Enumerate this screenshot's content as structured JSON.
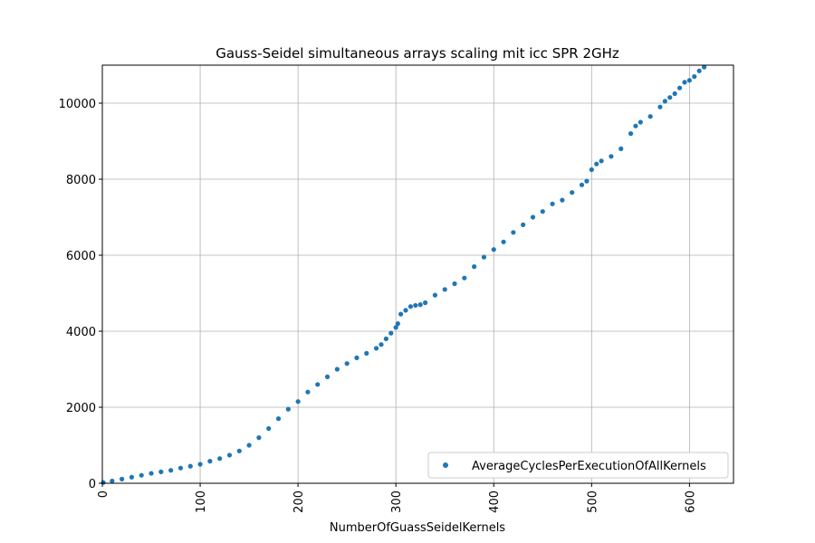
{
  "chart_data": {
    "type": "scatter",
    "title": "Gauss-Seidel simultaneous arrays scaling mit icc SPR 2GHz",
    "xlabel": "NumberOfGuassSeidelKernels",
    "ylabel": "",
    "xlim": [
      0,
      645
    ],
    "ylim": [
      0,
      11000
    ],
    "x_ticks": [
      0,
      100,
      200,
      300,
      400,
      500,
      600
    ],
    "y_ticks": [
      0,
      2000,
      4000,
      6000,
      8000,
      10000
    ],
    "x_tick_labels": [
      "0",
      "100",
      "200",
      "300",
      "400",
      "500",
      "600"
    ],
    "y_tick_labels": [
      "0",
      "2000",
      "4000",
      "6000",
      "8000",
      "10000"
    ],
    "grid": true,
    "legend_position": "lower-right",
    "series": [
      {
        "name": "AverageCyclesPerExecutionOfAllKernels",
        "color": "#1f77b4",
        "x": [
          1,
          10,
          20,
          30,
          40,
          50,
          60,
          70,
          80,
          90,
          100,
          110,
          120,
          130,
          140,
          150,
          160,
          170,
          180,
          190,
          200,
          210,
          220,
          230,
          240,
          250,
          260,
          270,
          280,
          285,
          290,
          295,
          300,
          302,
          305,
          310,
          315,
          320,
          325,
          330,
          340,
          350,
          360,
          370,
          380,
          390,
          400,
          410,
          420,
          430,
          440,
          450,
          460,
          470,
          480,
          490,
          495,
          500,
          505,
          510,
          520,
          530,
          540,
          545,
          550,
          560,
          570,
          575,
          580,
          585,
          590,
          595,
          600,
          605,
          610,
          615
        ],
        "y": [
          20,
          60,
          110,
          160,
          210,
          260,
          300,
          340,
          400,
          450,
          500,
          580,
          650,
          740,
          850,
          1000,
          1200,
          1440,
          1700,
          1950,
          2150,
          2400,
          2600,
          2800,
          3000,
          3150,
          3300,
          3420,
          3550,
          3650,
          3800,
          3950,
          4100,
          4200,
          4450,
          4550,
          4650,
          4680,
          4700,
          4750,
          4950,
          5100,
          5250,
          5400,
          5700,
          5950,
          6150,
          6350,
          6600,
          6800,
          7000,
          7150,
          7350,
          7450,
          7650,
          7850,
          7950,
          8250,
          8400,
          8480,
          8600,
          8800,
          9200,
          9400,
          9500,
          9650,
          9900,
          10050,
          10150,
          10250,
          10400,
          10550,
          10600,
          10700,
          10850,
          10950
        ]
      }
    ]
  }
}
